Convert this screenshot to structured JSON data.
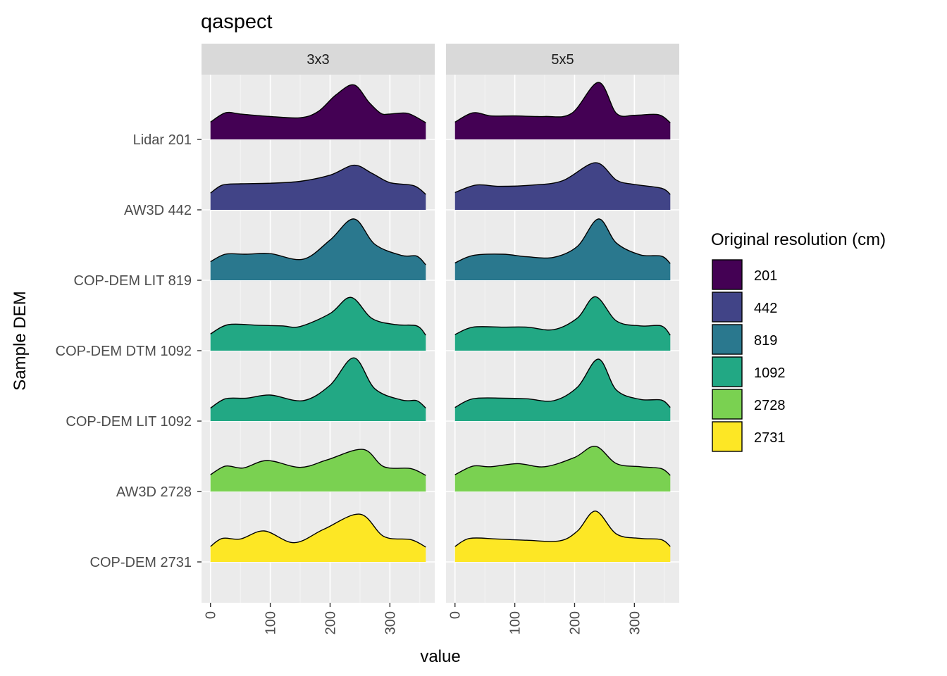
{
  "chart_data": {
    "type": "area",
    "subtype": "ridgeline density",
    "title": "qaspect",
    "xlabel": "value",
    "ylabel": "Sample DEM",
    "xlim": [
      -15,
      375
    ],
    "xticks": [
      0,
      100,
      200,
      300
    ],
    "categories": [
      "Lidar 201",
      "AW3D 442",
      "COP-DEM LIT 819",
      "COP-DEM DTM 1092",
      "COP-DEM LIT 1092",
      "AW3D 2728",
      "COP-DEM 2731"
    ],
    "legend": {
      "title": "Original resolution (cm)",
      "position": "right",
      "entries": [
        {
          "label": "201",
          "color": "#440154"
        },
        {
          "label": "442",
          "color": "#414487"
        },
        {
          "label": "819",
          "color": "#2A788E"
        },
        {
          "label": "1092",
          "color": "#22A884"
        },
        {
          "label": "2728",
          "color": "#7AD151"
        },
        {
          "label": "2731",
          "color": "#FDE725"
        }
      ]
    },
    "panels": [
      {
        "facet": "3x3",
        "series": [
          {
            "category": "Lidar 201",
            "group": "201",
            "x": [
              0,
              25,
              50,
              100,
              150,
              180,
              210,
              240,
              265,
              285,
              300,
              330,
              360
            ],
            "y": [
              0.28,
              0.43,
              0.41,
              0.37,
              0.35,
              0.45,
              0.72,
              0.88,
              0.6,
              0.42,
              0.41,
              0.42,
              0.27
            ]
          },
          {
            "category": "AW3D 442",
            "group": "442",
            "x": [
              0,
              20,
              50,
              100,
              150,
              200,
              240,
              270,
              300,
              340,
              360
            ],
            "y": [
              0.27,
              0.4,
              0.42,
              0.43,
              0.46,
              0.56,
              0.72,
              0.59,
              0.44,
              0.39,
              0.25
            ]
          },
          {
            "category": "COP-DEM LIT 819",
            "group": "819",
            "x": [
              0,
              25,
              60,
              100,
              155,
              200,
              240,
              275,
              320,
              345,
              360
            ],
            "y": [
              0.3,
              0.42,
              0.42,
              0.43,
              0.34,
              0.65,
              0.99,
              0.58,
              0.4,
              0.39,
              0.25
            ]
          },
          {
            "category": "COP-DEM DTM 1092",
            "group": "1092",
            "x": [
              0,
              30,
              80,
              120,
              150,
              200,
              235,
              270,
              310,
              345,
              360
            ],
            "y": [
              0.27,
              0.42,
              0.41,
              0.4,
              0.39,
              0.6,
              0.86,
              0.52,
              0.42,
              0.4,
              0.25
            ]
          },
          {
            "category": "COP-DEM LIT 1092",
            "group": "1092",
            "x": [
              0,
              25,
              60,
              100,
              155,
              200,
              240,
              275,
              320,
              345,
              360
            ],
            "y": [
              0.21,
              0.36,
              0.37,
              0.42,
              0.33,
              0.58,
              1.02,
              0.52,
              0.34,
              0.33,
              0.21
            ]
          },
          {
            "category": "AW3D 2728",
            "group": "2728",
            "x": [
              0,
              25,
              55,
              95,
              150,
              195,
              255,
              290,
              335,
              360
            ],
            "y": [
              0.27,
              0.41,
              0.38,
              0.5,
              0.39,
              0.51,
              0.68,
              0.4,
              0.37,
              0.26
            ]
          },
          {
            "category": "COP-DEM 2731",
            "group": "2731",
            "x": [
              0,
              20,
              50,
              90,
              140,
              190,
              250,
              290,
              335,
              360
            ],
            "y": [
              0.25,
              0.38,
              0.37,
              0.5,
              0.31,
              0.53,
              0.77,
              0.41,
              0.36,
              0.24
            ]
          }
        ]
      },
      {
        "facet": "5x5",
        "series": [
          {
            "category": "Lidar 201",
            "group": "201",
            "x": [
              0,
              30,
              60,
              100,
              150,
              195,
              240,
              270,
              300,
              340,
              360
            ],
            "y": [
              0.28,
              0.43,
              0.38,
              0.38,
              0.37,
              0.42,
              0.92,
              0.42,
              0.39,
              0.4,
              0.27
            ]
          },
          {
            "category": "AW3D 442",
            "group": "442",
            "x": [
              0,
              35,
              75,
              130,
              180,
              235,
              270,
              300,
              345,
              360
            ],
            "y": [
              0.28,
              0.4,
              0.38,
              0.4,
              0.47,
              0.76,
              0.48,
              0.41,
              0.35,
              0.25
            ]
          },
          {
            "category": "COP-DEM LIT 819",
            "group": "819",
            "x": [
              0,
              30,
              80,
              120,
              165,
              205,
              240,
              270,
              310,
              345,
              360
            ],
            "y": [
              0.28,
              0.4,
              0.42,
              0.38,
              0.37,
              0.55,
              0.99,
              0.6,
              0.41,
              0.39,
              0.27
            ]
          },
          {
            "category": "COP-DEM DTM 1092",
            "group": "1092",
            "x": [
              0,
              30,
              80,
              120,
              165,
              205,
              235,
              270,
              310,
              345,
              360
            ],
            "y": [
              0.26,
              0.38,
              0.38,
              0.38,
              0.34,
              0.53,
              0.87,
              0.48,
              0.4,
              0.4,
              0.25
            ]
          },
          {
            "category": "COP-DEM LIT 1092",
            "group": "1092",
            "x": [
              0,
              30,
              80,
              120,
              165,
              205,
              240,
              270,
              310,
              345,
              360
            ],
            "y": [
              0.22,
              0.36,
              0.37,
              0.36,
              0.33,
              0.55,
              1.0,
              0.5,
              0.35,
              0.34,
              0.22
            ]
          },
          {
            "category": "AW3D 2728",
            "group": "2728",
            "x": [
              0,
              30,
              60,
              105,
              150,
              200,
              235,
              270,
              310,
              345,
              360
            ],
            "y": [
              0.27,
              0.41,
              0.4,
              0.45,
              0.4,
              0.55,
              0.73,
              0.45,
              0.4,
              0.37,
              0.26
            ]
          },
          {
            "category": "COP-DEM 2731",
            "group": "2731",
            "x": [
              0,
              25,
              70,
              120,
              175,
              205,
              235,
              270,
              310,
              345,
              360
            ],
            "y": [
              0.25,
              0.38,
              0.37,
              0.35,
              0.34,
              0.5,
              0.82,
              0.45,
              0.38,
              0.36,
              0.25
            ]
          }
        ]
      }
    ]
  }
}
